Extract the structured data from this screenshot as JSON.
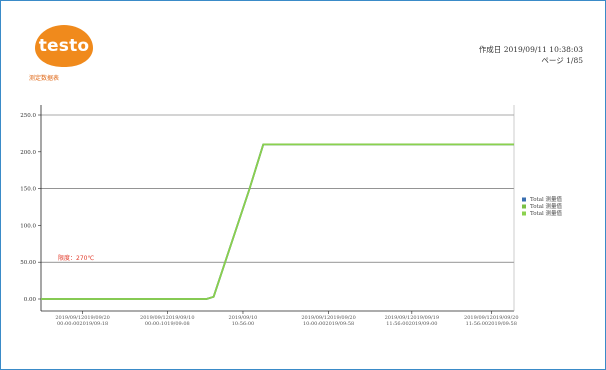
{
  "header": {
    "logo_text": "testo",
    "report_label": "测定数据表",
    "date_line": "作成日 2019/09/11 10:38:03",
    "page_line": "ページ 1/85"
  },
  "colors": {
    "frame_border": "#3a8bc8",
    "logo_bg": "#f08a1c",
    "series_line": "#7ac043",
    "annotation": "#e23b2b"
  },
  "chart_data": {
    "type": "line",
    "title": "",
    "xlabel": "",
    "ylabel": "",
    "grid": "horizontal lines at y ticks",
    "ylim": [
      0,
      250
    ],
    "y_ticks": [
      {
        "value": 250,
        "label": "250.0"
      },
      {
        "value": 200,
        "label": "200.0"
      },
      {
        "value": 150,
        "label": "150.0"
      },
      {
        "value": 100,
        "label": "100.0"
      },
      {
        "value": 50,
        "label": "50.00"
      },
      {
        "value": 0,
        "label": "0.00"
      }
    ],
    "xlim": [
      0,
      100
    ],
    "x_tick_positions": [
      8.8,
      26.7,
      42.7,
      60.8,
      78.4,
      95.2
    ],
    "x_tick_labels": [
      [
        "2019/09/12019/09/20",
        "00:00:002019/09:18"
      ],
      [
        "2019/09/12019/09/10",
        "00:00:1019/09:08"
      ],
      [
        "2019/09/10",
        "10:56:00"
      ],
      [
        "2019/09/12019/09/20",
        "10:00:002019/09:58"
      ],
      [
        "2019/09/12019/09/19",
        "11:56:002019/09:00"
      ],
      [
        "2019/09/12019/09/20",
        "11:56:002019/09:58"
      ]
    ],
    "annotation": "限度：270℃",
    "legend_position": "right",
    "series": [
      {
        "name": "Total 测量值",
        "color": "#3a6fb0",
        "x": [
          0,
          35.0,
          36.5,
          44.0,
          47.0,
          100
        ],
        "y": [
          0,
          0,
          3,
          148,
          210,
          210
        ]
      },
      {
        "name": "Total 测量值",
        "color": "#7ac043",
        "x": [
          0,
          35.0,
          36.5,
          44.0,
          47.0,
          100
        ],
        "y": [
          0,
          0,
          3,
          148,
          210,
          210
        ]
      },
      {
        "name": "Total 测量值",
        "color": "#8bd14e",
        "x": [
          0,
          35.0,
          36.5,
          44.0,
          47.0,
          100
        ],
        "y": [
          0,
          0,
          3,
          148,
          210,
          210
        ]
      }
    ]
  }
}
